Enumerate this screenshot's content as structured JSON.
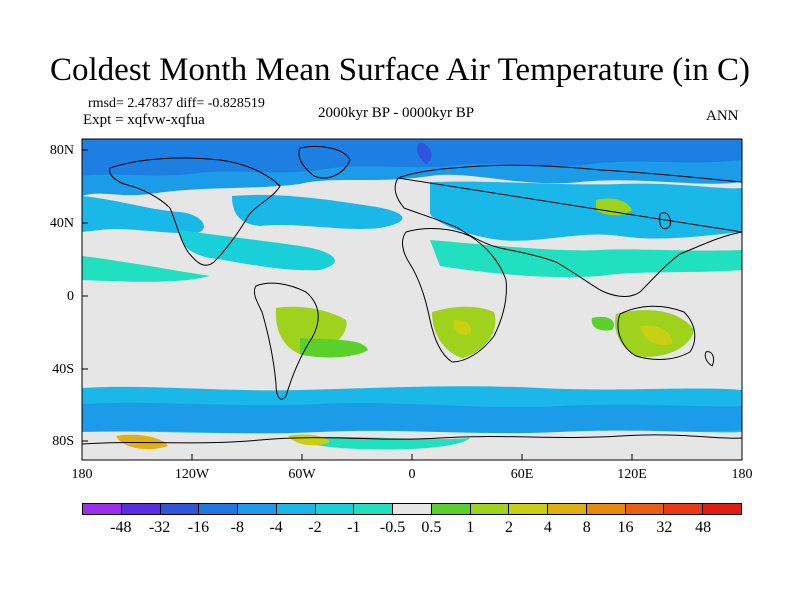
{
  "title": "Coldest Month Mean Surface Air Temperature (in C)",
  "stats": "rmsd= 2.47837 diff= -0.828519",
  "experiment": "Expt = xqfvw-xqfua",
  "period": "2000kyr BP - 0000kyr BP",
  "season": "ANN",
  "y_axis_labels": [
    "80N",
    "40N",
    "0",
    "40S",
    "80S"
  ],
  "x_axis_labels": [
    "180",
    "120W",
    "60W",
    "0",
    "60E",
    "120E",
    "180"
  ],
  "colorbar": {
    "labels": [
      "-48",
      "-32",
      "-16",
      "-8",
      "-4",
      "-2",
      "-1",
      "-0.5",
      "0.5",
      "1",
      "2",
      "4",
      "8",
      "16",
      "32",
      "48"
    ],
    "colors": [
      "#9b30e8",
      "#5a2ee0",
      "#2f55d8",
      "#1e78e0",
      "#1c9be8",
      "#1ab8e8",
      "#1ad0d8",
      "#20e0c0",
      "#e6e6e6",
      "#5ad02a",
      "#9ed21c",
      "#c9cf12",
      "#e0b010",
      "#e88a10",
      "#e86014",
      "#e83a12",
      "#e01e10"
    ]
  },
  "map": {
    "center_longitude": 0,
    "extent_lon": [
      -180,
      180
    ],
    "extent_lat": [
      -90,
      90
    ],
    "background_color": "#e6e6e6"
  }
}
